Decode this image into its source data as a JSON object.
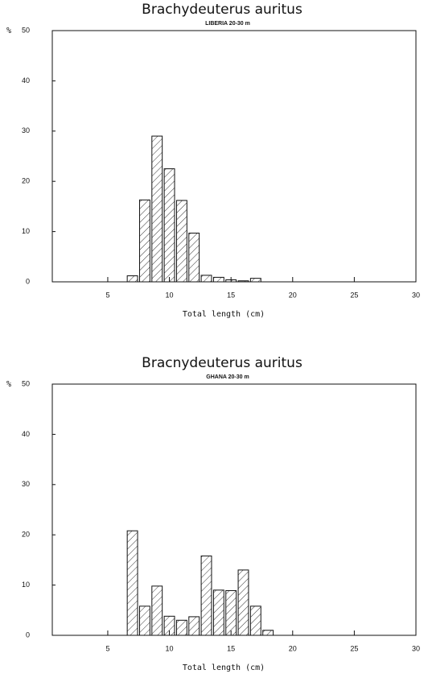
{
  "chart_data": [
    {
      "type": "histogram",
      "title": "Brachydeuterus auritus",
      "subtitle": "LIBERIA 20-30 m",
      "ylabel": "%",
      "xlabel": "Total length (cm)",
      "bins": [
        6.5,
        7.5,
        8.5,
        9.5,
        10.5,
        11.5,
        12.5,
        13.5,
        14.5,
        15.5,
        16.5,
        17.5
      ],
      "values": [
        1.2,
        16.3,
        29,
        22.5,
        16.2,
        9.7,
        1.3,
        0.9,
        0.4,
        0.2,
        0.7
      ],
      "xlim": [
        0.5,
        30
      ],
      "ylim": [
        0,
        50
      ],
      "xticks": [
        5,
        10,
        15,
        20,
        25,
        30
      ],
      "yticks": [
        0,
        10,
        20,
        30,
        40,
        50
      ]
    },
    {
      "type": "histogram",
      "title": "Bracnydeuterus auritus",
      "subtitle": "GHANA 20-30 m",
      "ylabel": "%",
      "xlabel": "Total length (cm)",
      "bins": [
        6.5,
        7.5,
        8.5,
        9.5,
        10.5,
        11.5,
        12.5,
        13.5,
        14.5,
        15.5,
        16.5,
        17.5,
        18.5
      ],
      "values": [
        20.8,
        5.8,
        9.8,
        3.8,
        3.0,
        3.7,
        15.8,
        9.0,
        8.9,
        13.0,
        5.8,
        1.0
      ],
      "xlim": [
        0.5,
        30
      ],
      "ylim": [
        0,
        50
      ],
      "xticks": [
        5,
        10,
        15,
        20,
        25,
        30
      ],
      "yticks": [
        0,
        10,
        20,
        30,
        40,
        50
      ]
    }
  ]
}
